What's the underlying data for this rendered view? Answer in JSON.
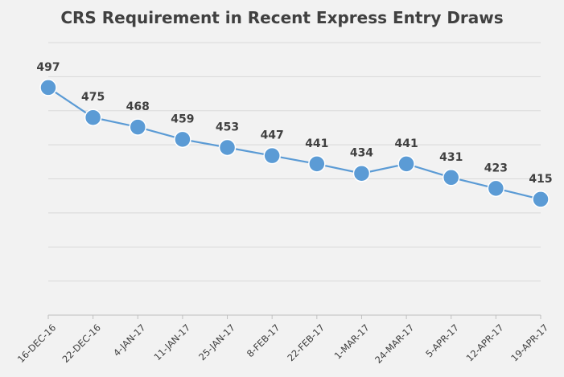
{
  "chart_data": {
    "type": "line",
    "title": "CRS Requirement in Recent Express Entry Draws",
    "xlabel": "",
    "ylabel": "",
    "categories": [
      "16-DEC-16",
      "22-DEC-16",
      "4-JAN-17",
      "11-JAN-17",
      "25-JAN-17",
      "8-FEB-17",
      "22-FEB-17",
      "1-MAR-17",
      "24-MAR-17",
      "5-APR-17",
      "12-APR-17",
      "19-APR-17"
    ],
    "series": [
      {
        "values": [
          497,
          475,
          468,
          459,
          453,
          447,
          441,
          434,
          441,
          431,
          423,
          415
        ]
      }
    ],
    "ylim": [
      330,
      530
    ],
    "grid": true,
    "color": "#5b9bd5"
  }
}
